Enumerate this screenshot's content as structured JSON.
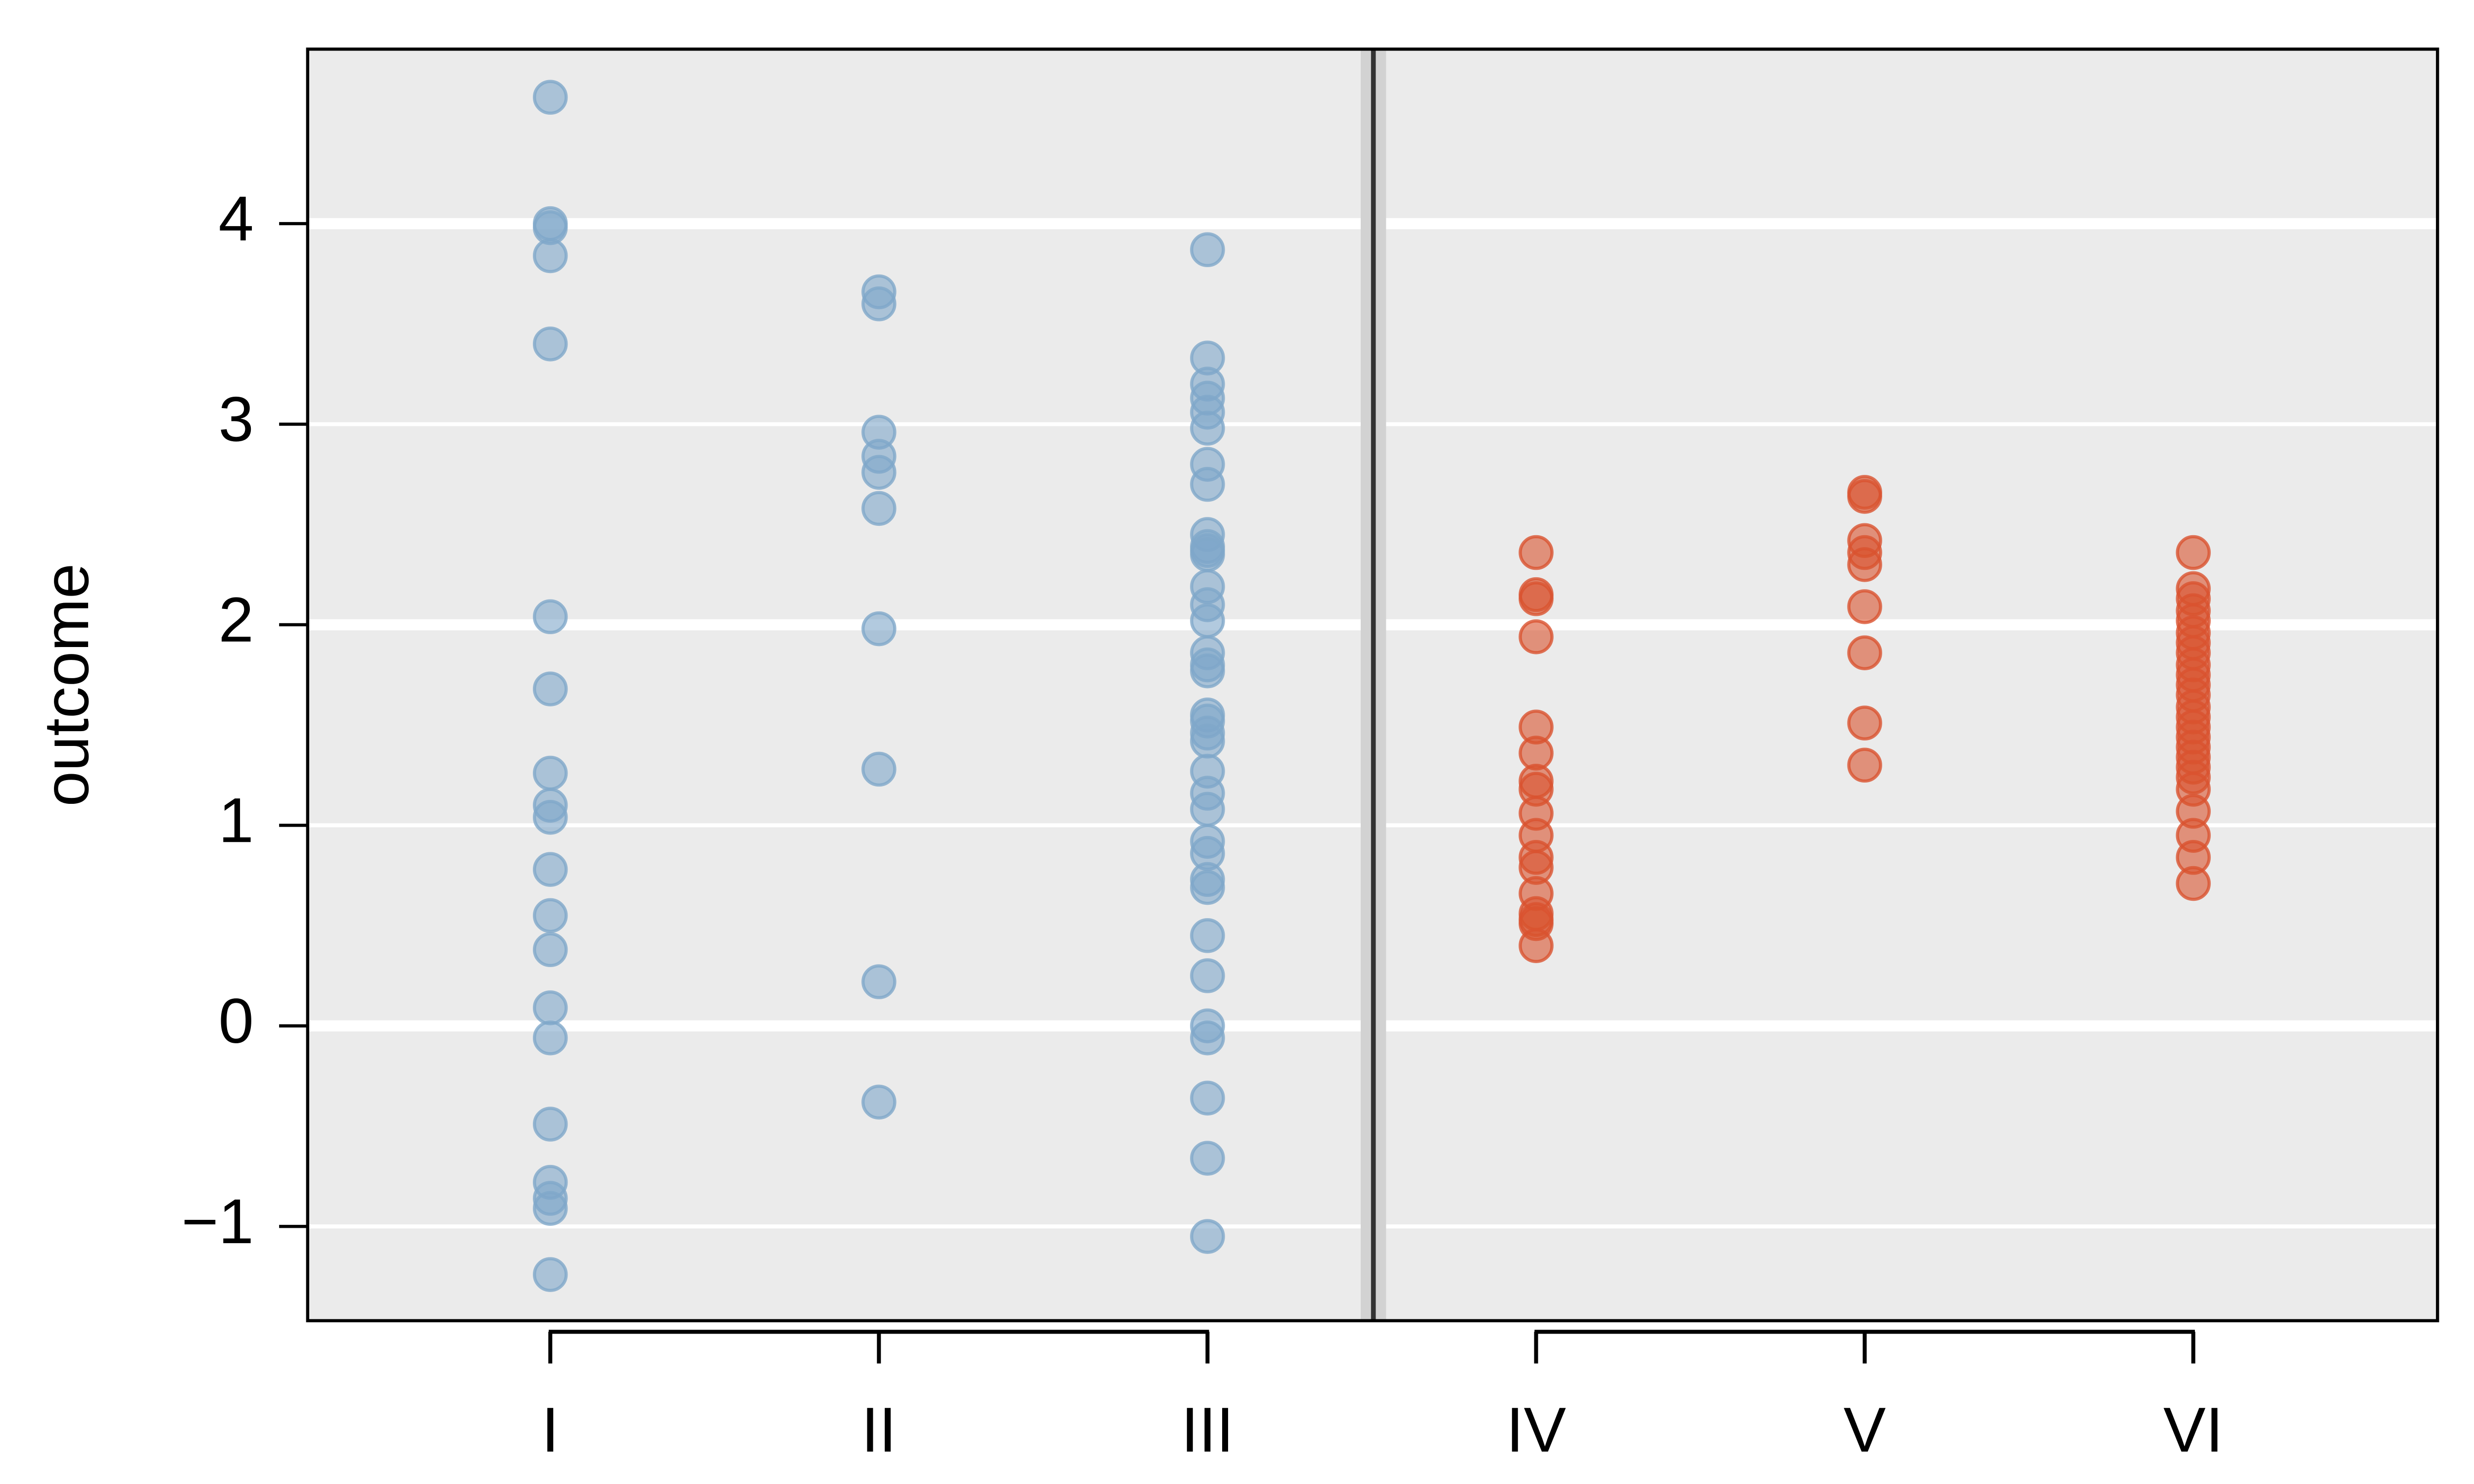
{
  "chart_data": {
    "type": "strip",
    "y_label": "outcome",
    "categories": [
      "I",
      "II",
      "III",
      "IV",
      "V",
      "VI"
    ],
    "colors": [
      "#7fa7c9",
      "#7fa7c9",
      "#7fa7c9",
      "#d9532f",
      "#d9532f",
      "#d9532f"
    ],
    "values": [
      [
        4.63,
        4.0,
        3.98,
        3.84,
        3.4,
        2.04,
        1.68,
        1.26,
        1.1,
        1.04,
        0.78,
        0.55,
        0.38,
        0.09,
        -0.06,
        -0.49,
        -0.78,
        -0.86,
        -0.91,
        -1.24
      ],
      [
        3.66,
        3.6,
        2.96,
        2.84,
        2.76,
        2.58,
        1.98,
        1.28,
        0.22,
        -0.38
      ],
      [
        3.87,
        3.33,
        3.2,
        3.13,
        3.06,
        2.98,
        2.8,
        2.7,
        2.45,
        2.39,
        2.37,
        2.35,
        2.19,
        2.1,
        2.02,
        1.86,
        1.8,
        1.77,
        1.55,
        1.52,
        1.46,
        1.42,
        1.27,
        1.16,
        1.08,
        0.92,
        0.86,
        0.73,
        0.69,
        0.45,
        0.25,
        0.0,
        -0.06,
        -0.36,
        -0.66,
        -1.05
      ],
      [
        2.36,
        2.15,
        2.13,
        1.94,
        1.49,
        1.36,
        1.22,
        1.18,
        1.06,
        0.95,
        0.84,
        0.79,
        0.66,
        0.56,
        0.53,
        0.51,
        0.4
      ],
      [
        2.66,
        2.64,
        2.42,
        2.36,
        2.3,
        2.09,
        1.86,
        1.51,
        1.3
      ],
      [
        2.36,
        2.18,
        2.13,
        2.07,
        2.02,
        1.96,
        1.91,
        1.86,
        1.8,
        1.75,
        1.7,
        1.65,
        1.59,
        1.54,
        1.49,
        1.44,
        1.39,
        1.34,
        1.29,
        1.24,
        1.18,
        1.07,
        0.95,
        0.84,
        0.71
      ]
    ],
    "ylim": [
      -1.47,
      4.87
    ],
    "yticks": [
      {
        "value": -1,
        "label": "−1"
      },
      0,
      1,
      2,
      3,
      4
    ],
    "grid": true
  }
}
